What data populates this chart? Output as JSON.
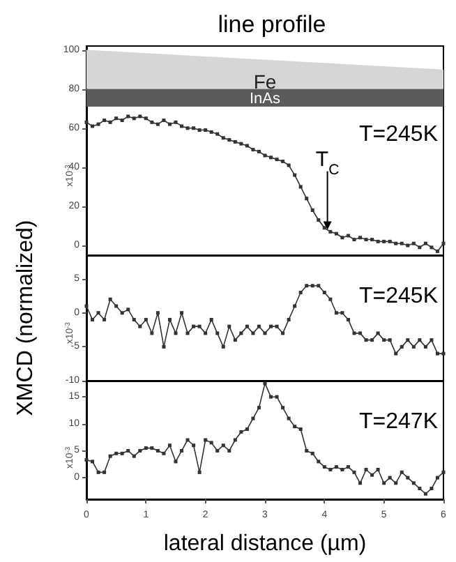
{
  "chart_data": [
    {
      "type": "line",
      "title": "line profile",
      "marker": "square",
      "line_style": "solid",
      "grid": false,
      "tick_labels": "y",
      "xlim": [
        0,
        6
      ],
      "ylim": [
        -5,
        102
      ],
      "yticks": [
        0,
        20,
        40,
        60,
        80,
        100
      ],
      "annotations": [
        "Fe",
        "InAs",
        {
          "text": "T$_{C}$",
          "x": 4.05,
          "y": 8
        },
        "T=245K",
        "x10$^{-3}$"
      ],
      "x": [
        0,
        0.1,
        0.2,
        0.3,
        0.4,
        0.5,
        0.6,
        0.7,
        0.8,
        0.9,
        1.0,
        1.1,
        1.2,
        1.3,
        1.4,
        1.5,
        1.6,
        1.7,
        1.8,
        1.9,
        2.0,
        2.1,
        2.2,
        2.3,
        2.4,
        2.5,
        2.6,
        2.7,
        2.8,
        2.9,
        3.0,
        3.1,
        3.2,
        3.3,
        3.4,
        3.5,
        3.6,
        3.7,
        3.8,
        3.9,
        4.0,
        4.1,
        4.2,
        4.3,
        4.4,
        4.5,
        4.6,
        4.7,
        4.8,
        4.9,
        5.0,
        5.1,
        5.2,
        5.3,
        5.4,
        5.5,
        5.6,
        5.7,
        5.8,
        5.9,
        6.0
      ],
      "series": [
        {
          "color": "#333333",
          "values": [
            63,
            61,
            62,
            64,
            63,
            65,
            64,
            66,
            65,
            66,
            65,
            63,
            62,
            64,
            62,
            63,
            61,
            60,
            60,
            59,
            59,
            58,
            57,
            55,
            54,
            53,
            52,
            51,
            49,
            48,
            46,
            45,
            44,
            43,
            41,
            36,
            30,
            24,
            18,
            13,
            9,
            7,
            6,
            4,
            5,
            3,
            4,
            3,
            3,
            2,
            2,
            2,
            1,
            1,
            0,
            1,
            -1,
            1,
            -1,
            -3,
            1
          ]
        }
      ]
    },
    {
      "type": "line",
      "ylabel": "XMCD (normalized)",
      "marker": "square",
      "line_style": "solid",
      "grid": false,
      "tick_labels": "y",
      "xlim": [
        0,
        6
      ],
      "ylim": [
        -10,
        8.5
      ],
      "yticks": [
        -10,
        -5,
        0,
        5
      ],
      "annotations": [
        "T=245K",
        "x10$^{-3}$"
      ],
      "x": [
        0,
        0.1,
        0.2,
        0.3,
        0.4,
        0.5,
        0.6,
        0.7,
        0.8,
        0.9,
        1.0,
        1.1,
        1.2,
        1.3,
        1.4,
        1.5,
        1.6,
        1.7,
        1.8,
        1.9,
        2.0,
        2.1,
        2.2,
        2.3,
        2.4,
        2.5,
        2.6,
        2.7,
        2.8,
        2.9,
        3.0,
        3.1,
        3.2,
        3.3,
        3.4,
        3.5,
        3.6,
        3.7,
        3.8,
        3.9,
        4.0,
        4.1,
        4.2,
        4.3,
        4.4,
        4.5,
        4.6,
        4.7,
        4.8,
        4.9,
        5.0,
        5.1,
        5.2,
        5.3,
        5.4,
        5.5,
        5.6,
        5.7,
        5.8,
        5.9,
        6.0
      ],
      "series": [
        {
          "color": "#333333",
          "values": [
            1,
            -1,
            0,
            -1,
            2,
            1,
            0,
            0.5,
            -1,
            -2,
            -1,
            -3,
            0,
            -5,
            -1,
            -3,
            0,
            -3,
            -2,
            -2,
            -3,
            -1,
            -3,
            -5,
            -2,
            -4,
            -3,
            -2,
            -3,
            -2,
            -3,
            -2,
            -2,
            -3,
            -1,
            1,
            3,
            4,
            4,
            4,
            3,
            2,
            0,
            0,
            -1,
            -3,
            -3,
            -4,
            -4,
            -3,
            -4,
            -4,
            -6,
            -5,
            -4,
            -5,
            -4,
            -5,
            -4,
            -6,
            -6
          ]
        }
      ]
    },
    {
      "type": "line",
      "xlabel": "lateral distance (µm)",
      "marker": "square",
      "line_style": "solid",
      "grid": false,
      "xlim": [
        0,
        6
      ],
      "xticks": [
        0,
        1,
        2,
        3,
        4,
        5,
        6
      ],
      "ylim": [
        -4,
        18
      ],
      "yticks": [
        0,
        5,
        10,
        15
      ],
      "annotations": [
        "T=247K",
        "x10$^{-3}$"
      ],
      "x": [
        0,
        0.1,
        0.2,
        0.3,
        0.4,
        0.5,
        0.6,
        0.7,
        0.8,
        0.9,
        1.0,
        1.1,
        1.2,
        1.3,
        1.4,
        1.5,
        1.6,
        1.7,
        1.8,
        1.9,
        2.0,
        2.1,
        2.2,
        2.3,
        2.4,
        2.5,
        2.6,
        2.7,
        2.8,
        2.9,
        3.0,
        3.1,
        3.2,
        3.3,
        3.4,
        3.5,
        3.6,
        3.7,
        3.8,
        3.9,
        4.0,
        4.1,
        4.2,
        4.3,
        4.4,
        4.5,
        4.6,
        4.7,
        4.8,
        4.9,
        5.0,
        5.1,
        5.2,
        5.3,
        5.4,
        5.5,
        5.6,
        5.7,
        5.8,
        5.9,
        6.0
      ],
      "series": [
        {
          "color": "#333333",
          "values": [
            3.3,
            3,
            1,
            1,
            4,
            4.5,
            4.5,
            5,
            4,
            5,
            5.5,
            5.5,
            5,
            4.5,
            6,
            3,
            5,
            7,
            6,
            1,
            7,
            6.5,
            5,
            6,
            5,
            7,
            8.5,
            9,
            11,
            13,
            17.5,
            15,
            15,
            13,
            11,
            9.5,
            9,
            5,
            4.5,
            3,
            2,
            1.5,
            2,
            1.5,
            2,
            1,
            -1,
            1.5,
            0.5,
            1.5,
            -1,
            0,
            -1,
            1,
            0,
            -1,
            -2,
            -3,
            -2,
            0,
            1
          ]
        }
      ]
    }
  ]
}
